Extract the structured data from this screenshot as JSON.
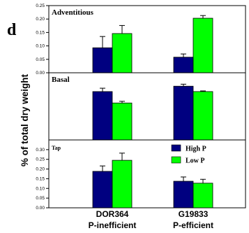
{
  "figure": {
    "panel_letter": "d",
    "ylabel": "% of total dry weight",
    "x_groups": [
      {
        "name": "DOR364",
        "sub": "P-inefficient"
      },
      {
        "name": "G19833",
        "sub": "P-efficient"
      }
    ],
    "legend": [
      "High P",
      "Low P"
    ]
  },
  "colors": {
    "high_p": "#000080",
    "low_p": "#00ff00",
    "axis": "#000000"
  },
  "chart_data": [
    {
      "type": "bar",
      "title": "Adventitious",
      "categories": [
        "DOR364",
        "G19833"
      ],
      "series": [
        {
          "name": "High P",
          "values": [
            0.093,
            0.058
          ],
          "errors": [
            0.042,
            0.012
          ]
        },
        {
          "name": "Low P",
          "values": [
            0.146,
            0.203
          ],
          "errors": [
            0.03,
            0.01
          ]
        }
      ],
      "ylim": [
        0,
        0.25
      ],
      "yticks": [
        "0.00",
        "0.05",
        "0.10",
        "0.15",
        "0.20",
        "0.25"
      ]
    },
    {
      "type": "bar",
      "title": "Basal",
      "categories": [
        "DOR364",
        "G19833"
      ],
      "series": [
        {
          "name": "High P",
          "values": [
            0.72,
            0.8
          ],
          "errors": [
            0.05,
            0.03
          ]
        },
        {
          "name": "Low P",
          "values": [
            0.55,
            0.72
          ],
          "errors": [
            0.025,
            0.01
          ]
        }
      ],
      "ylim": [
        0,
        1.0
      ],
      "yticks": []
    },
    {
      "type": "bar",
      "title": "Tap",
      "categories": [
        "DOR364",
        "G19833"
      ],
      "series": [
        {
          "name": "High P",
          "values": [
            0.188,
            0.137
          ],
          "errors": [
            0.028,
            0.022
          ]
        },
        {
          "name": "Low P",
          "values": [
            0.245,
            0.127
          ],
          "errors": [
            0.037,
            0.02
          ]
        }
      ],
      "ylim": [
        0,
        0.35
      ],
      "yticks": [
        "0.00",
        "0.05",
        "0.10",
        "0.15",
        "0.20",
        "0.25",
        "0.30"
      ]
    }
  ]
}
